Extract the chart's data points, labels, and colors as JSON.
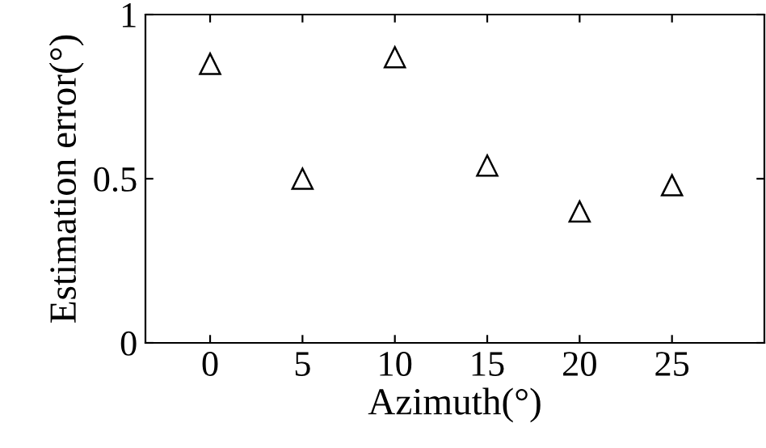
{
  "chart_data": {
    "type": "scatter",
    "xlabel": "Azimuth(°)",
    "ylabel": "Estimation error(°)",
    "x": [
      0,
      5,
      10,
      15,
      20,
      25
    ],
    "series": [
      {
        "color": "#000000",
        "values": [
          0.85,
          0.5,
          0.87,
          0.54,
          0.4,
          0.48
        ]
      }
    ],
    "marker": "triangle",
    "xlim": [
      -3.5,
      30
    ],
    "ylim": [
      0,
      1
    ],
    "xticks": [
      0,
      5,
      10,
      15,
      20,
      25
    ],
    "yticks": [
      0,
      0.5,
      1
    ],
    "grid": false,
    "legend": false
  }
}
